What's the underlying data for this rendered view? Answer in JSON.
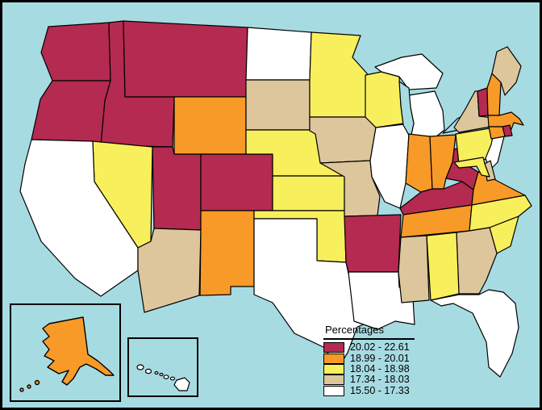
{
  "canvas": {
    "ocean_color": "#A7DBE2",
    "frame_color": "#000000",
    "state_outline_color": "#000000"
  },
  "legend": {
    "title": "Percentages",
    "items": [
      {
        "key": "q5",
        "label": "20.02 - 22.61",
        "color": "#B42A50"
      },
      {
        "key": "q4",
        "label": "18.99 - 20.01",
        "color": "#F89A28"
      },
      {
        "key": "q3",
        "label": "18.04 - 18.98",
        "color": "#F8EF5C"
      },
      {
        "key": "q2",
        "label": "17.34 - 18.03",
        "color": "#DDC69C"
      },
      {
        "key": "q1",
        "label": "15.50 - 17.33",
        "color": "#FFFFFF"
      }
    ]
  },
  "map": {
    "insets": [
      "Alaska",
      "Hawaii"
    ],
    "states": [
      {
        "id": "WA",
        "name": "Washington",
        "category": "q5",
        "range": "20.02 - 22.61"
      },
      {
        "id": "OR",
        "name": "Oregon",
        "category": "q5",
        "range": "20.02 - 22.61"
      },
      {
        "id": "ID",
        "name": "Idaho",
        "category": "q5",
        "range": "20.02 - 22.61"
      },
      {
        "id": "MT",
        "name": "Montana",
        "category": "q5",
        "range": "20.02 - 22.61"
      },
      {
        "id": "UT",
        "name": "Utah",
        "category": "q5",
        "range": "20.02 - 22.61"
      },
      {
        "id": "CO",
        "name": "Colorado",
        "category": "q5",
        "range": "20.02 - 22.61"
      },
      {
        "id": "AR",
        "name": "Arkansas",
        "category": "q5",
        "range": "20.02 - 22.61"
      },
      {
        "id": "KY",
        "name": "Kentucky",
        "category": "q5",
        "range": "20.02 - 22.61"
      },
      {
        "id": "WV",
        "name": "West Virginia",
        "category": "q5",
        "range": "20.02 - 22.61"
      },
      {
        "id": "VT",
        "name": "Vermont",
        "category": "q5",
        "range": "20.02 - 22.61"
      },
      {
        "id": "RI",
        "name": "Rhode Island",
        "category": "q5",
        "range": "20.02 - 22.61"
      },
      {
        "id": "WY",
        "name": "Wyoming",
        "category": "q4",
        "range": "18.99 - 20.01"
      },
      {
        "id": "NM",
        "name": "New Mexico",
        "category": "q4",
        "range": "18.99 - 20.01"
      },
      {
        "id": "IN",
        "name": "Indiana",
        "category": "q4",
        "range": "18.99 - 20.01"
      },
      {
        "id": "OH",
        "name": "Ohio",
        "category": "q4",
        "range": "18.99 - 20.01"
      },
      {
        "id": "TN",
        "name": "Tennessee",
        "category": "q4",
        "range": "18.99 - 20.01"
      },
      {
        "id": "VA",
        "name": "Virginia",
        "category": "q4",
        "range": "18.99 - 20.01"
      },
      {
        "id": "NH",
        "name": "New Hampshire",
        "category": "q4",
        "range": "18.99 - 20.01"
      },
      {
        "id": "MA",
        "name": "Massachusetts",
        "category": "q4",
        "range": "18.99 - 20.01"
      },
      {
        "id": "CT",
        "name": "Connecticut",
        "category": "q4",
        "range": "18.99 - 20.01"
      },
      {
        "id": "AK",
        "name": "Alaska",
        "category": "q4",
        "range": "18.99 - 20.01"
      },
      {
        "id": "NV",
        "name": "Nevada",
        "category": "q3",
        "range": "18.04 - 18.98"
      },
      {
        "id": "NE",
        "name": "Nebraska",
        "category": "q3",
        "range": "18.04 - 18.98"
      },
      {
        "id": "KS",
        "name": "Kansas",
        "category": "q3",
        "range": "18.04 - 18.98"
      },
      {
        "id": "OK",
        "name": "Oklahoma",
        "category": "q3",
        "range": "18.04 - 18.98"
      },
      {
        "id": "MN",
        "name": "Minnesota",
        "category": "q3",
        "range": "18.04 - 18.98"
      },
      {
        "id": "WI",
        "name": "Wisconsin",
        "category": "q3",
        "range": "18.04 - 18.98"
      },
      {
        "id": "PA",
        "name": "Pennsylvania",
        "category": "q3",
        "range": "18.04 - 18.98"
      },
      {
        "id": "MD",
        "name": "Maryland",
        "category": "q3",
        "range": "18.04 - 18.98"
      },
      {
        "id": "NC",
        "name": "North Carolina",
        "category": "q3",
        "range": "18.04 - 18.98"
      },
      {
        "id": "SC",
        "name": "South Carolina",
        "category": "q3",
        "range": "18.04 - 18.98"
      },
      {
        "id": "AL",
        "name": "Alabama",
        "category": "q3",
        "range": "18.04 - 18.98"
      },
      {
        "id": "AZ",
        "name": "Arizona",
        "category": "q2",
        "range": "17.34 - 18.03"
      },
      {
        "id": "SD",
        "name": "South Dakota",
        "category": "q2",
        "range": "17.34 - 18.03"
      },
      {
        "id": "IA",
        "name": "Iowa",
        "category": "q2",
        "range": "17.34 - 18.03"
      },
      {
        "id": "MO",
        "name": "Missouri",
        "category": "q2",
        "range": "17.34 - 18.03"
      },
      {
        "id": "MS",
        "name": "Mississippi",
        "category": "q2",
        "range": "17.34 - 18.03"
      },
      {
        "id": "GA",
        "name": "Georgia",
        "category": "q2",
        "range": "17.34 - 18.03"
      },
      {
        "id": "NY",
        "name": "New York",
        "category": "q2",
        "range": "17.34 - 18.03"
      },
      {
        "id": "ME",
        "name": "Maine",
        "category": "q2",
        "range": "17.34 - 18.03"
      },
      {
        "id": "DE",
        "name": "Delaware",
        "category": "q2",
        "range": "17.34 - 18.03"
      },
      {
        "id": "CA",
        "name": "California",
        "category": "q1",
        "range": "15.50 - 17.33"
      },
      {
        "id": "ND",
        "name": "North Dakota",
        "category": "q1",
        "range": "15.50 - 17.33"
      },
      {
        "id": "TX",
        "name": "Texas",
        "category": "q1",
        "range": "15.50 - 17.33"
      },
      {
        "id": "LA",
        "name": "Louisiana",
        "category": "q1",
        "range": "15.50 - 17.33"
      },
      {
        "id": "IL",
        "name": "Illinois",
        "category": "q1",
        "range": "15.50 - 17.33"
      },
      {
        "id": "MI",
        "name": "Michigan",
        "category": "q1",
        "range": "15.50 - 17.33"
      },
      {
        "id": "FL",
        "name": "Florida",
        "category": "q1",
        "range": "15.50 - 17.33"
      },
      {
        "id": "NJ",
        "name": "New Jersey",
        "category": "q1",
        "range": "15.50 - 17.33"
      },
      {
        "id": "HI",
        "name": "Hawaii",
        "category": "q1",
        "range": "15.50 - 17.33"
      }
    ]
  }
}
